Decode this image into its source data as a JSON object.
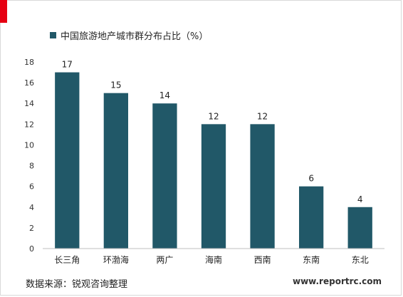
{
  "colors": {
    "bar": "#215868",
    "accent": "#e60012"
  },
  "legend": {
    "label": "中国旅游地产城市群分布占比（%）"
  },
  "source": "数据来源：锐观咨询整理",
  "watermark": "www.reportrc.com",
  "chart_data": {
    "type": "bar",
    "categories": [
      "长三角",
      "环渤海",
      "两广",
      "海南",
      "西南",
      "东南",
      "东北"
    ],
    "series": [
      {
        "name": "中国旅游地产城市群分布占比（%）",
        "values": [
          17,
          15,
          14,
          12,
          12,
          6,
          4
        ]
      }
    ],
    "ylim": [
      0,
      18
    ],
    "yticks": [
      0,
      2,
      4,
      6,
      8,
      10,
      12,
      14,
      16,
      18
    ],
    "data_labels": true,
    "grid": false,
    "legend_position": "top-left"
  }
}
